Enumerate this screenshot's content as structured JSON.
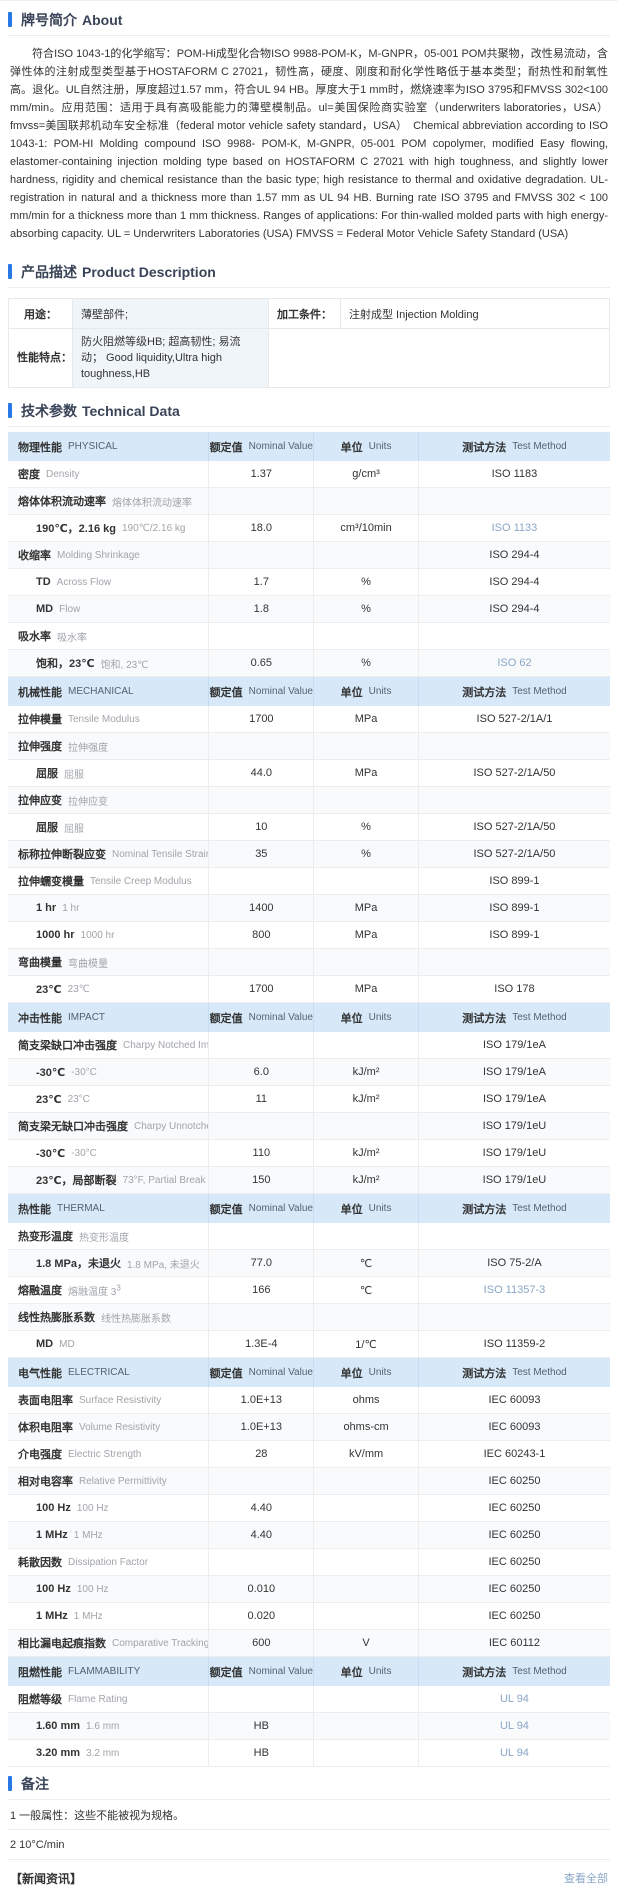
{
  "colors": {
    "accent": "#2878e5",
    "table_header_bg": "#d7e9f9",
    "link": "#8aa6c7"
  },
  "about": {
    "title_cn": "牌号简介",
    "title_en": "About",
    "text": "符合ISO 1043-1的化学缩写：POM-Hi成型化合物ISO 9988-POM-K，M-GNPR，05-001 POM共聚物，改性易流动，含弹性体的注射成型类型基于HOSTAFORM C 27021，韧性高，硬度、刚度和耐化学性略低于基本类型；耐热性和耐氧性高。退化。UL自然注册，厚度超过1.57 mm，符合UL 94 HB。厚度大于1 mm时，燃烧速率为ISO 3795和FMVSS 302<100 mm/min。应用范围：适用于具有高吸能能力的薄壁模制品。ul=美国保险商实验室（underwriters laboratories，USA）fmvss=美国联邦机动车安全标准（federal motor vehicle safety standard，USA）　Chemical abbreviation according to ISO 1043-1: POM-HI Molding compound ISO 9988- POM-K, M-GNPR, 05-001 POM copolymer, modified Easy flowing, elastomer-containing injection molding type based on HOSTAFORM C 27021 with high toughness, and slightly lower hardness, rigidity and chemical resistance than the basic type; high resistance to thermal and oxidative degradation. UL-registration in natural and a thickness more than 1.57 mm as UL 94 HB. Burning rate ISO 3795 and FMVSS 302 < 100 mm/min for a thickness more than 1 mm thickness. Ranges of applications: For thin-walled molded parts with high energy-absorbing capacity. UL = Underwriters Laboratories (USA) FMVSS = Federal Motor Vehicle Safety Standard (USA)"
  },
  "product": {
    "title_cn": "产品描述",
    "title_en": "Product Description",
    "usage_label": "用途：",
    "usage_value": "薄壁部件;",
    "processing_label": "加工条件：",
    "processing_value": "注射成型 Injection Molding",
    "features_label": "性能特点：",
    "features_value": "防火阻燃等级HB; 超高韧性; 易流动； Good liquidity,Ultra high toughness,HB"
  },
  "technical": {
    "title_cn": "技术参数",
    "title_en": "Technical Data",
    "columns": {
      "nominal_cn": "额定值",
      "nominal_en": "Nominal Value",
      "units_cn": "单位",
      "units_en": "Units",
      "method_cn": "测试方法",
      "method_en": "Test Method"
    },
    "groups": [
      {
        "cn": "物理性能",
        "en": "PHYSICAL",
        "rows": [
          {
            "cn": "密度",
            "en": "Density",
            "value": "1.37",
            "unit": "g/cm³",
            "method": "ISO 1183"
          },
          {
            "cn": "熔体体积流动速率",
            "en": "熔体体积流动速率"
          },
          {
            "cn": "190℃，2.16 kg",
            "en": "190℃/2.16 kg",
            "indent": true,
            "value": "18.0",
            "unit": "cm³/10min",
            "method": "ISO 1133",
            "link": true
          },
          {
            "cn": "收缩率",
            "en": "Molding Shrinkage",
            "method": "ISO 294-4"
          },
          {
            "cn": "TD",
            "en": "Across Flow",
            "indent": true,
            "value": "1.7",
            "unit": "%",
            "method": "ISO 294-4"
          },
          {
            "cn": "MD",
            "en": "Flow",
            "indent": true,
            "value": "1.8",
            "unit": "%",
            "method": "ISO 294-4"
          },
          {
            "cn": "吸水率",
            "en": "吸水率"
          },
          {
            "cn": "饱和，23℃",
            "en": "饱和, 23℃",
            "indent": true,
            "value": "0.65",
            "unit": "%",
            "method": "ISO 62",
            "link": true
          }
        ]
      },
      {
        "cn": "机械性能",
        "en": "MECHANICAL",
        "rows": [
          {
            "cn": "拉伸模量",
            "en": "Tensile Modulus",
            "value": "1700",
            "unit": "MPa",
            "method": "ISO 527-2/1A/1"
          },
          {
            "cn": "拉伸强度",
            "en": "拉伸强度"
          },
          {
            "cn": "屈服",
            "en": "屈服",
            "indent": true,
            "value": "44.0",
            "unit": "MPa",
            "method": "ISO 527-2/1A/50"
          },
          {
            "cn": "拉伸应变",
            "en": "拉伸应变"
          },
          {
            "cn": "屈服",
            "en": "屈服",
            "indent": true,
            "value": "10",
            "unit": "%",
            "method": "ISO 527-2/1A/50"
          },
          {
            "cn": "标称拉伸断裂应变",
            "en": "Nominal Tensile Strain at Break",
            "value": "35",
            "unit": "%",
            "method": "ISO 527-2/1A/50"
          },
          {
            "cn": "拉伸蠕变模量",
            "en": "Tensile Creep Modulus",
            "method": "ISO 899-1"
          },
          {
            "cn": "1 hr",
            "en": "1 hr",
            "indent": true,
            "value": "1400",
            "unit": "MPa",
            "method": "ISO 899-1"
          },
          {
            "cn": "1000 hr",
            "en": "1000 hr",
            "indent": true,
            "value": "800",
            "unit": "MPa",
            "method": "ISO 899-1"
          },
          {
            "cn": "弯曲模量",
            "en": "弯曲模量"
          },
          {
            "cn": "23℃",
            "en": "23℃",
            "indent": true,
            "value": "1700",
            "unit": "MPa",
            "method": "ISO 178"
          }
        ]
      },
      {
        "cn": "冲击性能",
        "en": "IMPACT",
        "rows": [
          {
            "cn": "简支梁缺口冲击强度",
            "en": "Charpy Notched Impact Strength",
            "method": "ISO 179/1eA"
          },
          {
            "cn": "-30℃",
            "en": "-30°C",
            "indent": true,
            "value": "6.0",
            "unit": "kJ/m²",
            "method": "ISO 179/1eA"
          },
          {
            "cn": "23℃",
            "en": "23°C",
            "indent": true,
            "value": "11",
            "unit": "kJ/m²",
            "method": "ISO 179/1eA"
          },
          {
            "cn": "简支梁无缺口冲击强度",
            "en": "Charpy Unnotched Impact Strength",
            "method": "ISO 179/1eU"
          },
          {
            "cn": "-30℃",
            "en": "-30°C",
            "indent": true,
            "value": "110",
            "unit": "kJ/m²",
            "method": "ISO 179/1eU"
          },
          {
            "cn": "23℃，局部断裂",
            "en": "73°F, Partial Break",
            "indent": true,
            "value": "150",
            "unit": "kJ/m²",
            "method": "ISO 179/1eU"
          }
        ]
      },
      {
        "cn": "热性能",
        "en": "THERMAL",
        "rows": [
          {
            "cn": "热变形温度",
            "en": "热变形温度"
          },
          {
            "cn": "1.8 MPa，未退火",
            "en": "1.8 MPa, 未退火",
            "indent": true,
            "value": "77.0",
            "unit": "℃",
            "method": "ISO 75-2/A"
          },
          {
            "cn": "熔融温度",
            "en": "熔融温度 3",
            "en_sup": "3",
            "value": "166",
            "unit": "℃",
            "method": "ISO 11357-3",
            "link": true
          },
          {
            "cn": "线性热膨胀系数",
            "en": "线性热膨胀系数"
          },
          {
            "cn": "MD",
            "en": "MD",
            "indent": true,
            "value": "1.3E-4",
            "unit": "1/℃",
            "method": "ISO 11359-2"
          }
        ]
      },
      {
        "cn": "电气性能",
        "en": "ELECTRICAL",
        "rows": [
          {
            "cn": "表面电阻率",
            "en": "Surface Resistivity",
            "value": "1.0E+13",
            "unit": "ohms",
            "method": "IEC 60093"
          },
          {
            "cn": "体积电阻率",
            "en": "Volume Resistivity",
            "value": "1.0E+13",
            "unit": "ohms-cm",
            "method": "IEC 60093"
          },
          {
            "cn": "介电强度",
            "en": "Electric Strength",
            "value": "28",
            "unit": "kV/mm",
            "method": "IEC 60243-1"
          },
          {
            "cn": "相对电容率",
            "en": "Relative Permittivity",
            "method": "IEC 60250"
          },
          {
            "cn": "100 Hz",
            "en": "100 Hz",
            "indent": true,
            "value": "4.40",
            "method": "IEC 60250"
          },
          {
            "cn": "1 MHz",
            "en": "1 MHz",
            "indent": true,
            "value": "4.40",
            "method": "IEC 60250"
          },
          {
            "cn": "耗散因数",
            "en": "Dissipation Factor",
            "method": "IEC 60250"
          },
          {
            "cn": "100 Hz",
            "en": "100 Hz",
            "indent": true,
            "value": "0.010",
            "method": "IEC 60250"
          },
          {
            "cn": "1 MHz",
            "en": "1 MHz",
            "indent": true,
            "value": "0.020",
            "method": "IEC 60250"
          },
          {
            "cn": "相比漏电起痕指数",
            "en": "Comparative Tracking Index",
            "value": "600",
            "unit": "V",
            "method": "IEC 60112"
          }
        ]
      },
      {
        "cn": "阻燃性能",
        "en": "FLAMMABILITY",
        "rows": [
          {
            "cn": "阻燃等级",
            "en": "Flame Rating",
            "method": "UL 94",
            "link": true
          },
          {
            "cn": "1.60 mm",
            "en": "1.6 mm",
            "indent": true,
            "value": "HB",
            "method": "UL 94",
            "link": true
          },
          {
            "cn": "3.20 mm",
            "en": "3.2 mm",
            "indent": true,
            "value": "HB",
            "method": "UL 94",
            "link": true
          }
        ]
      }
    ]
  },
  "remarks": {
    "title": "备注",
    "notes": [
      "1 一般属性：这些不能被视为规格。",
      "2 10°C/min"
    ]
  },
  "footer": {
    "left": "【新闻资讯】",
    "right": "查看全部"
  }
}
